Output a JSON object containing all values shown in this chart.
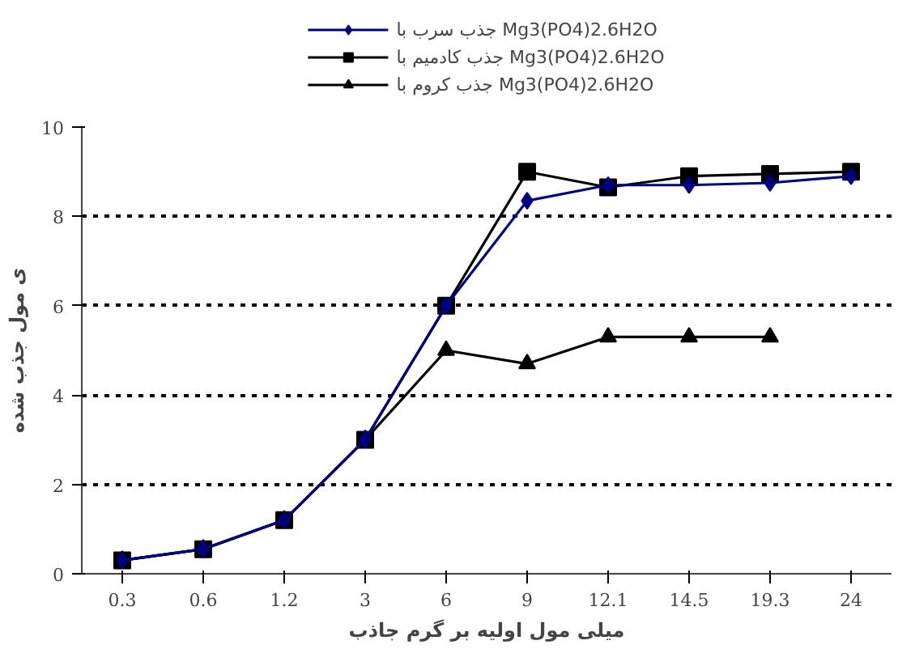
{
  "chart_data": {
    "type": "line",
    "xlabel": "میلی مول اولیه بر گرم جاذب",
    "ylabel": "ی مول جذب شده",
    "categories": [
      "0.3",
      "0.6",
      "1.2",
      "3",
      "6",
      "9",
      "12.1",
      "14.5",
      "19.3",
      "24"
    ],
    "series": [
      {
        "name": "جذب سرب با Mg3(PO4)2.6H2O",
        "color": "#000080",
        "marker": "diamond",
        "values": [
          0.3,
          0.55,
          1.2,
          3,
          6,
          8.35,
          8.7,
          8.7,
          8.75,
          8.9
        ]
      },
      {
        "name": "جذب کادمیم با Mg3(PO4)2.6H2O",
        "color": "#000000",
        "marker": "square",
        "values": [
          0.3,
          0.55,
          1.2,
          3,
          6,
          9.0,
          8.65,
          8.9,
          8.95,
          9.0
        ]
      },
      {
        "name": "جذب کروم با Mg3(PO4)2.6H2O",
        "color": "#000000",
        "marker": "triangle",
        "values": [
          0.3,
          0.55,
          1.2,
          3,
          5.0,
          4.7,
          5.3,
          5.3,
          5.3,
          null
        ]
      }
    ],
    "ylim": [
      0,
      10
    ],
    "yticks": [
      0,
      2,
      4,
      6,
      8,
      10
    ],
    "grid": "y",
    "legend": "top",
    "line_style": "solid"
  }
}
